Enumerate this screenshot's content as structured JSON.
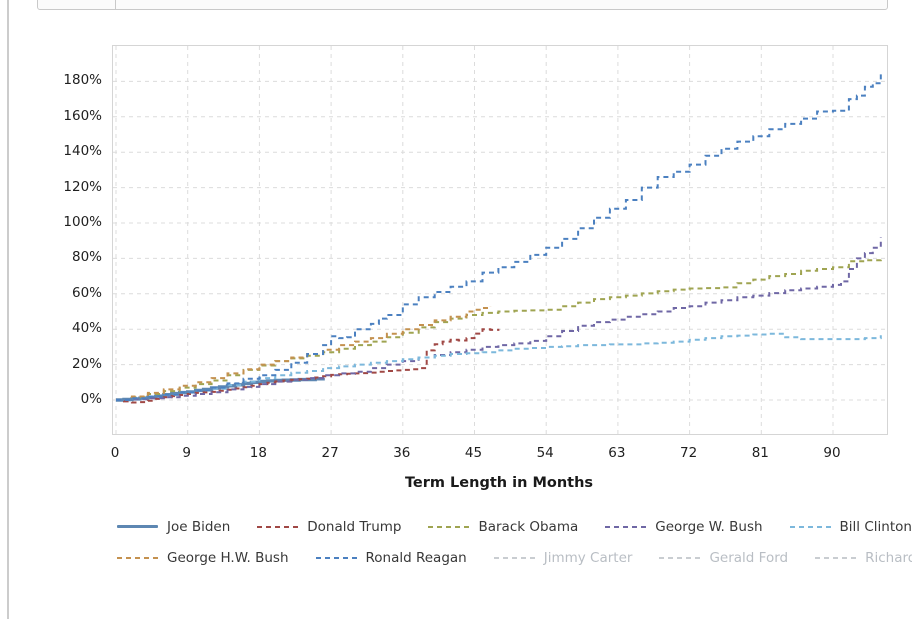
{
  "page": {
    "background": "#ffffff",
    "divider_color": "#cccccc"
  },
  "chart_data": {
    "type": "line",
    "title": "",
    "xlabel": "Term Length in Months",
    "ylabel": "",
    "x_ticks": [
      0,
      9,
      18,
      27,
      36,
      45,
      54,
      63,
      72,
      81,
      90
    ],
    "y_ticks": [
      0,
      20,
      40,
      60,
      80,
      100,
      120,
      140,
      160,
      180
    ],
    "y_tick_suffix": "%",
    "xlim": [
      0,
      97
    ],
    "ylim": [
      -20,
      200
    ],
    "grid": true,
    "grid_color": "#dcdcdc",
    "legend_position": "bottom",
    "legend_rows": [
      5,
      5
    ],
    "disabled_color": "#c9cdd1",
    "series": [
      {
        "name": "Joe Biden",
        "color": "#5d87b2",
        "style": "solid",
        "hidden": false,
        "points": [
          [
            0,
            0
          ],
          [
            1,
            0.3
          ],
          [
            2,
            0.6
          ],
          [
            3,
            1
          ],
          [
            4,
            1.5
          ],
          [
            5,
            2.2
          ],
          [
            6,
            3
          ],
          [
            7,
            3.6
          ],
          [
            8,
            4.2
          ],
          [
            9,
            4.6
          ],
          [
            10,
            5.4
          ],
          [
            11,
            6
          ],
          [
            12,
            6.8
          ],
          [
            13,
            7.4
          ],
          [
            14,
            8
          ],
          [
            15,
            8.6
          ],
          [
            16,
            9.4
          ],
          [
            17,
            10
          ],
          [
            18,
            10.5
          ],
          [
            19,
            10.8
          ],
          [
            20,
            11
          ],
          [
            21,
            11.2
          ],
          [
            22,
            11.3
          ],
          [
            23,
            11.5
          ],
          [
            24,
            11.6
          ],
          [
            25,
            12
          ],
          [
            26,
            12.5
          ]
        ]
      },
      {
        "name": "Donald Trump",
        "color": "#a04845",
        "style": "dashed",
        "hidden": false,
        "points": [
          [
            0,
            0
          ],
          [
            1,
            -0.8
          ],
          [
            2,
            -1.4
          ],
          [
            3,
            -1.2
          ],
          [
            4,
            -0.4
          ],
          [
            5,
            0.6
          ],
          [
            6,
            1.6
          ],
          [
            7,
            2.2
          ],
          [
            8,
            2.8
          ],
          [
            9,
            3.4
          ],
          [
            10,
            4
          ],
          [
            11,
            4.3
          ],
          [
            12,
            4.6
          ],
          [
            13,
            5.2
          ],
          [
            14,
            5.8
          ],
          [
            15,
            6.5
          ],
          [
            16,
            7.2
          ],
          [
            17,
            8.1
          ],
          [
            18,
            9
          ],
          [
            19,
            9.8
          ],
          [
            20,
            10.5
          ],
          [
            21,
            11
          ],
          [
            22,
            11.4
          ],
          [
            23,
            11.7
          ],
          [
            24,
            12
          ],
          [
            25,
            12.7
          ],
          [
            26,
            13.4
          ],
          [
            27,
            14.2
          ],
          [
            28,
            14.6
          ],
          [
            29,
            14.8
          ],
          [
            30,
            15
          ],
          [
            31,
            15.2
          ],
          [
            32,
            15.5
          ],
          [
            33,
            16
          ],
          [
            34,
            16.4
          ],
          [
            35,
            16.7
          ],
          [
            36,
            17
          ],
          [
            37,
            17.4
          ],
          [
            38,
            18
          ],
          [
            39,
            28
          ],
          [
            40,
            31.5
          ],
          [
            41,
            33
          ],
          [
            42,
            34
          ],
          [
            43,
            33.6
          ],
          [
            44,
            35
          ],
          [
            45,
            37.5
          ],
          [
            46,
            40
          ],
          [
            47,
            39.6
          ],
          [
            48,
            40.3
          ]
        ]
      },
      {
        "name": "Barack Obama",
        "color": "#9fa451",
        "style": "dashed",
        "hidden": false,
        "points": [
          [
            0,
            0
          ],
          [
            2,
            1.5
          ],
          [
            4,
            3.4
          ],
          [
            6,
            5
          ],
          [
            8,
            7
          ],
          [
            10,
            9
          ],
          [
            12,
            11
          ],
          [
            14,
            14
          ],
          [
            16,
            17
          ],
          [
            18,
            19.5
          ],
          [
            20,
            22
          ],
          [
            22,
            23.5
          ],
          [
            24,
            25
          ],
          [
            26,
            27
          ],
          [
            28,
            29
          ],
          [
            30,
            31
          ],
          [
            32,
            33
          ],
          [
            34,
            35.5
          ],
          [
            36,
            38
          ],
          [
            38,
            41
          ],
          [
            40,
            44
          ],
          [
            42,
            46
          ],
          [
            44,
            48
          ],
          [
            46,
            49.2
          ],
          [
            48,
            50
          ],
          [
            50,
            50.4
          ],
          [
            52,
            50.6
          ],
          [
            54,
            51
          ],
          [
            56,
            53
          ],
          [
            58,
            55
          ],
          [
            60,
            57
          ],
          [
            62,
            58
          ],
          [
            64,
            59
          ],
          [
            66,
            60.2
          ],
          [
            68,
            61.4
          ],
          [
            70,
            62.4
          ],
          [
            72,
            63
          ],
          [
            74,
            63.2
          ],
          [
            76,
            63.6
          ],
          [
            78,
            66
          ],
          [
            80,
            68
          ],
          [
            82,
            70
          ],
          [
            84,
            71.2
          ],
          [
            86,
            73
          ],
          [
            88,
            74
          ],
          [
            90,
            75
          ],
          [
            92,
            78.4
          ],
          [
            94,
            79
          ],
          [
            96,
            79.6
          ]
        ]
      },
      {
        "name": "George W. Bush",
        "color": "#6f67a5",
        "style": "dashed",
        "hidden": false,
        "points": [
          [
            0,
            0
          ],
          [
            2,
            0.4
          ],
          [
            4,
            1
          ],
          [
            6,
            1.6
          ],
          [
            8,
            2.4
          ],
          [
            10,
            3.4
          ],
          [
            12,
            4.4
          ],
          [
            14,
            6
          ],
          [
            16,
            7.4
          ],
          [
            18,
            9
          ],
          [
            20,
            10.4
          ],
          [
            22,
            11.4
          ],
          [
            24,
            12.4
          ],
          [
            26,
            14
          ],
          [
            28,
            15
          ],
          [
            30,
            16
          ],
          [
            32,
            18
          ],
          [
            34,
            20
          ],
          [
            36,
            22
          ],
          [
            38,
            24
          ],
          [
            40,
            25.4
          ],
          [
            42,
            27
          ],
          [
            44,
            28.4
          ],
          [
            46,
            30
          ],
          [
            48,
            31
          ],
          [
            50,
            32
          ],
          [
            52,
            33.4
          ],
          [
            54,
            36
          ],
          [
            56,
            39
          ],
          [
            58,
            42
          ],
          [
            60,
            44
          ],
          [
            62,
            45.4
          ],
          [
            64,
            47
          ],
          [
            66,
            48.4
          ],
          [
            68,
            50
          ],
          [
            70,
            52
          ],
          [
            72,
            53
          ],
          [
            74,
            55
          ],
          [
            76,
            56.4
          ],
          [
            78,
            58
          ],
          [
            80,
            59
          ],
          [
            82,
            60.4
          ],
          [
            84,
            62
          ],
          [
            86,
            63
          ],
          [
            88,
            64
          ],
          [
            90,
            65
          ],
          [
            91,
            67
          ],
          [
            92,
            74
          ],
          [
            93,
            80
          ],
          [
            94,
            83
          ],
          [
            95,
            86
          ],
          [
            96,
            92
          ]
        ]
      },
      {
        "name": "Bill Clinton",
        "color": "#7cb8dc",
        "style": "dashed",
        "hidden": false,
        "points": [
          [
            0,
            0
          ],
          [
            2,
            1
          ],
          [
            4,
            2
          ],
          [
            6,
            3
          ],
          [
            8,
            4.4
          ],
          [
            10,
            5.4
          ],
          [
            12,
            6.4
          ],
          [
            14,
            8.4
          ],
          [
            16,
            10.4
          ],
          [
            18,
            12.4
          ],
          [
            20,
            14
          ],
          [
            22,
            15.4
          ],
          [
            24,
            16.4
          ],
          [
            26,
            18
          ],
          [
            28,
            19
          ],
          [
            30,
            20
          ],
          [
            32,
            21
          ],
          [
            34,
            22
          ],
          [
            36,
            23
          ],
          [
            38,
            24
          ],
          [
            40,
            25
          ],
          [
            42,
            26
          ],
          [
            44,
            26.4
          ],
          [
            46,
            27
          ],
          [
            48,
            28
          ],
          [
            50,
            29
          ],
          [
            52,
            29.4
          ],
          [
            54,
            30
          ],
          [
            56,
            30.4
          ],
          [
            58,
            31
          ],
          [
            60,
            31
          ],
          [
            62,
            31.4
          ],
          [
            64,
            31.4
          ],
          [
            66,
            32
          ],
          [
            68,
            32.4
          ],
          [
            70,
            33
          ],
          [
            72,
            34
          ],
          [
            74,
            35
          ],
          [
            76,
            36
          ],
          [
            78,
            36.4
          ],
          [
            80,
            37
          ],
          [
            82,
            37.4
          ],
          [
            84,
            35.4
          ],
          [
            86,
            34.4
          ],
          [
            88,
            34.4
          ],
          [
            90,
            34.4
          ],
          [
            92,
            34.4
          ],
          [
            94,
            35
          ],
          [
            96,
            36.6
          ]
        ]
      },
      {
        "name": "George H.W. Bush",
        "color": "#c4914f",
        "style": "dashed",
        "hidden": false,
        "points": [
          [
            0,
            0
          ],
          [
            2,
            2
          ],
          [
            4,
            4
          ],
          [
            6,
            6
          ],
          [
            8,
            8
          ],
          [
            10,
            10
          ],
          [
            12,
            12.4
          ],
          [
            14,
            15
          ],
          [
            16,
            17.4
          ],
          [
            18,
            20
          ],
          [
            20,
            22
          ],
          [
            22,
            24
          ],
          [
            24,
            26
          ],
          [
            26,
            28.4
          ],
          [
            28,
            31
          ],
          [
            30,
            33
          ],
          [
            32,
            35
          ],
          [
            34,
            37.4
          ],
          [
            36,
            40
          ],
          [
            38,
            42.4
          ],
          [
            40,
            45
          ],
          [
            42,
            47
          ],
          [
            44,
            50
          ],
          [
            45,
            51
          ],
          [
            46,
            52
          ],
          [
            47,
            53
          ]
        ]
      },
      {
        "name": "Ronald Reagan",
        "color": "#4b80c0",
        "style": "dashed",
        "hidden": false,
        "points": [
          [
            0,
            0
          ],
          [
            2,
            1
          ],
          [
            4,
            2
          ],
          [
            6,
            3
          ],
          [
            8,
            4.4
          ],
          [
            10,
            5.4
          ],
          [
            12,
            7
          ],
          [
            14,
            9.4
          ],
          [
            16,
            12
          ],
          [
            18,
            14
          ],
          [
            20,
            17
          ],
          [
            22,
            21
          ],
          [
            24,
            26
          ],
          [
            26,
            31
          ],
          [
            27,
            36
          ],
          [
            28,
            35
          ],
          [
            29,
            35.4
          ],
          [
            30,
            40
          ],
          [
            32,
            43
          ],
          [
            33,
            46
          ],
          [
            34,
            48
          ],
          [
            36,
            54
          ],
          [
            38,
            58
          ],
          [
            40,
            61
          ],
          [
            42,
            64
          ],
          [
            44,
            67
          ],
          [
            46,
            72
          ],
          [
            48,
            75
          ],
          [
            50,
            78
          ],
          [
            52,
            82
          ],
          [
            54,
            86
          ],
          [
            56,
            91
          ],
          [
            58,
            97
          ],
          [
            60,
            103
          ],
          [
            62,
            108
          ],
          [
            64,
            113
          ],
          [
            66,
            120
          ],
          [
            68,
            126
          ],
          [
            70,
            129
          ],
          [
            72,
            133
          ],
          [
            74,
            138
          ],
          [
            76,
            142
          ],
          [
            78,
            146
          ],
          [
            80,
            149
          ],
          [
            82,
            153
          ],
          [
            84,
            156
          ],
          [
            86,
            159
          ],
          [
            88,
            163
          ],
          [
            90,
            163.4
          ],
          [
            92,
            170
          ],
          [
            93,
            172
          ],
          [
            94,
            177
          ],
          [
            95,
            179
          ],
          [
            96,
            184
          ]
        ]
      },
      {
        "name": "Jimmy Carter",
        "color": "#c9cdd1",
        "style": "dashed",
        "hidden": true,
        "points": []
      },
      {
        "name": "Gerald Ford",
        "color": "#c9cdd1",
        "style": "dashed",
        "hidden": true,
        "points": []
      },
      {
        "name": "Richard Nixon",
        "color": "#c9cdd1",
        "style": "dashed",
        "hidden": true,
        "points": []
      }
    ]
  }
}
